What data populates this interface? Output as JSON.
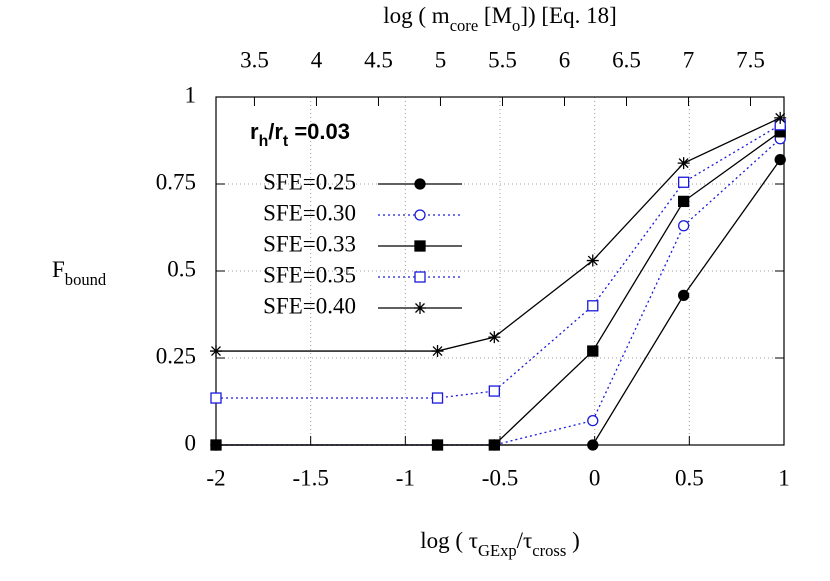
{
  "chart_data": {
    "type": "line",
    "x2label": [
      {
        "text": "log ( m"
      },
      {
        "text": "core",
        "sub": true
      },
      {
        "text": " [M"
      },
      {
        "text": "o",
        "sub": true
      },
      {
        "text": "]) [Eq. 18]"
      }
    ],
    "xlabel": [
      {
        "text": "log ( τ"
      },
      {
        "text": "GExp",
        "sub": true
      },
      {
        "text": "/τ"
      },
      {
        "text": "cross",
        "sub": true
      },
      {
        "text": " )"
      }
    ],
    "ylabel": [
      {
        "text": "F"
      },
      {
        "text": "bound",
        "sub": true
      }
    ],
    "annotation": [
      {
        "text": "r"
      },
      {
        "text": "h",
        "sub": true
      },
      {
        "text": "/r"
      },
      {
        "text": "t",
        "sub": true
      },
      {
        "text": " =0.03"
      }
    ],
    "x": [
      -2,
      -0.83,
      -0.53,
      -0.01,
      0.47,
      0.98
    ],
    "xlim": [
      -2,
      1
    ],
    "xticks": [
      -2,
      -1.5,
      -1,
      -0.5,
      0,
      0.5,
      1
    ],
    "x2lim": [
      3.19,
      7.77
    ],
    "x2ticks": [
      3.5,
      4,
      4.5,
      5,
      5.5,
      6,
      6.5,
      7,
      7.5
    ],
    "ylim": [
      0,
      1
    ],
    "yticks": [
      0,
      0.25,
      0.5,
      0.75,
      1
    ],
    "grid": true,
    "series": [
      {
        "name": "SFE=0.25",
        "color": "#000000",
        "line": "solid",
        "marker": "filled-circle",
        "values": [
          0,
          0,
          0,
          0,
          0.43,
          0.82
        ]
      },
      {
        "name": "SFE=0.30",
        "color": "#1a1adc",
        "line": "dotted",
        "marker": "open-circle",
        "values": [
          0,
          0,
          0,
          0.07,
          0.63,
          0.88
        ]
      },
      {
        "name": "SFE=0.33",
        "color": "#000000",
        "line": "solid",
        "marker": "filled-square",
        "values": [
          0,
          0,
          0,
          0.27,
          0.7,
          0.9
        ]
      },
      {
        "name": "SFE=0.35",
        "color": "#1a1adc",
        "line": "dotted",
        "marker": "open-square",
        "values": [
          0.135,
          0.135,
          0.155,
          0.4,
          0.755,
          0.92
        ]
      },
      {
        "name": "SFE=0.40",
        "color": "#000000",
        "line": "solid",
        "marker": "asterisk",
        "values": [
          0.27,
          0.27,
          0.31,
          0.53,
          0.81,
          0.94
        ]
      }
    ]
  }
}
